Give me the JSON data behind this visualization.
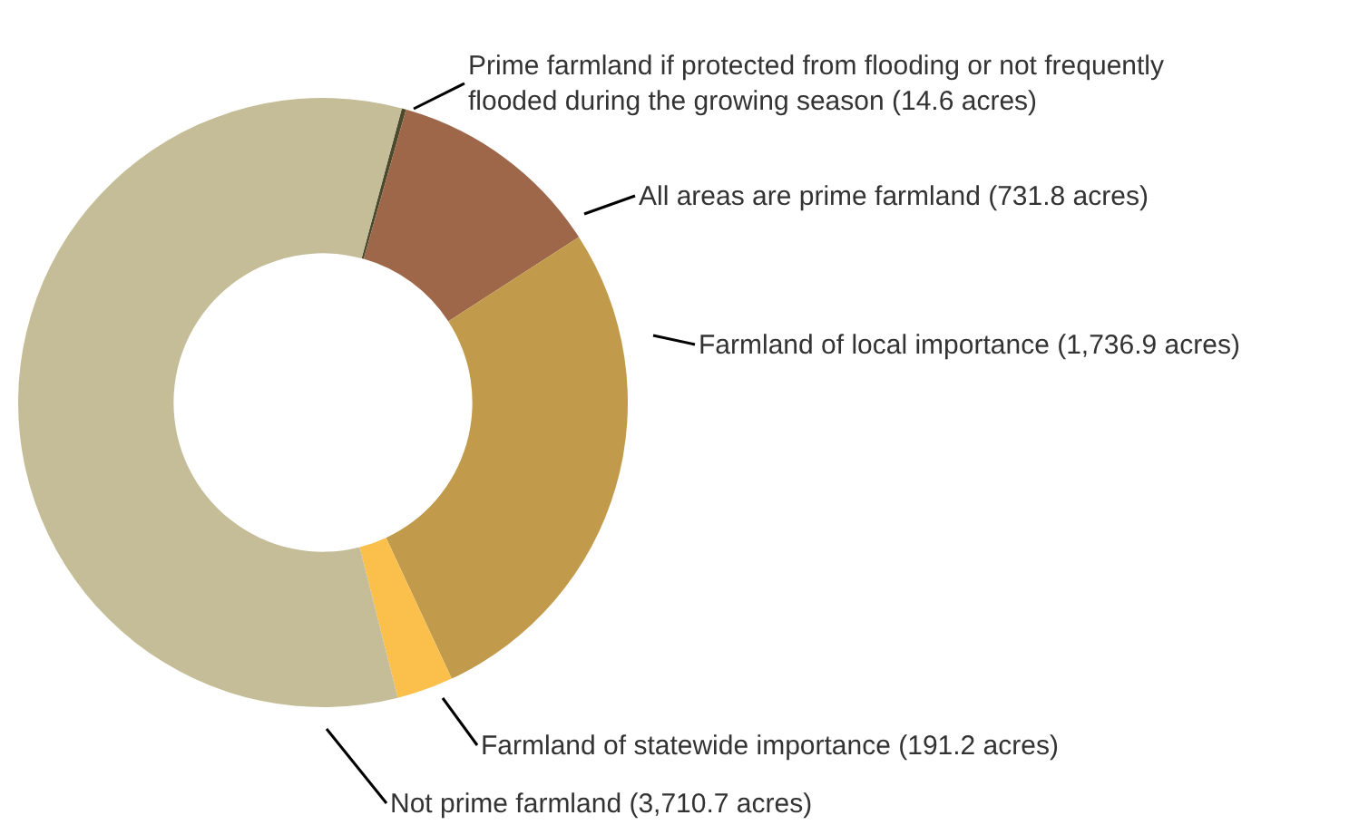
{
  "chart_data": {
    "type": "donut",
    "categories": [
      "Prime farmland if protected from flooding or not frequently flooded during the growing season (14.6 acres)",
      "All areas are prime farmland (731.8 acres)",
      "Farmland of local importance (1,736.9 acres)",
      "Farmland of statewide importance (191.2 acres)",
      "Not prime farmland (3,710.7 acres)"
    ],
    "values": [
      14.6,
      731.8,
      1736.9,
      191.2,
      3710.7
    ],
    "colors": [
      "#4b4a2c",
      "#9e674a",
      "#c19b4b",
      "#fbc04c",
      "#c5bd98"
    ],
    "legend": false
  }
}
